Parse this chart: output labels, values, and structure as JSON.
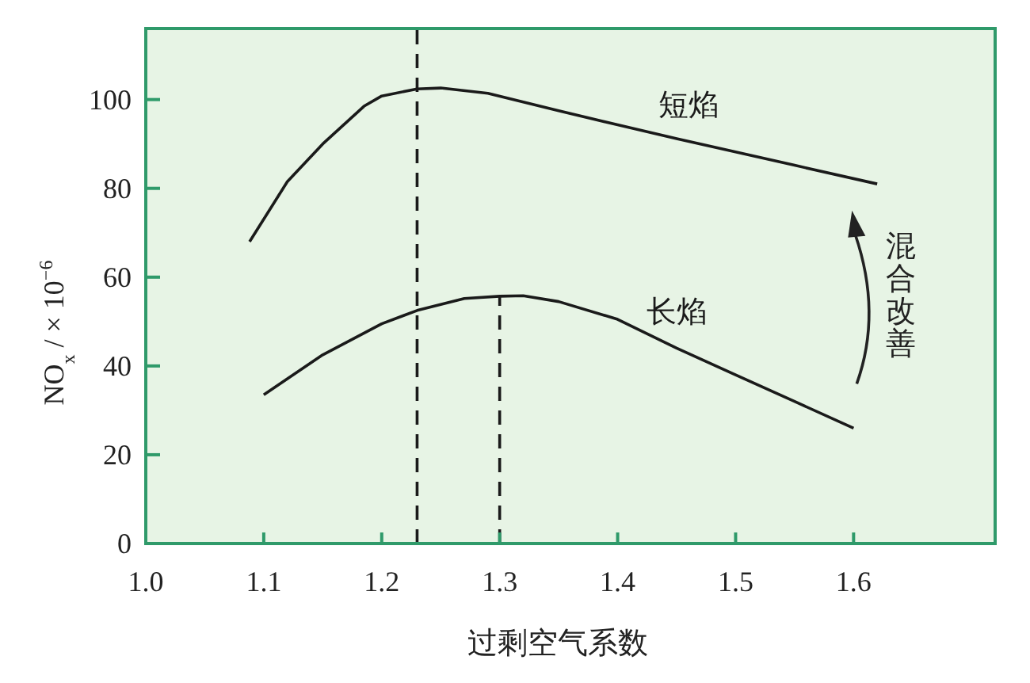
{
  "chart_data": {
    "type": "line",
    "xlabel": "过剩空气系数",
    "ylabel": "NO$_{x}$ / × 10$^{−6}$",
    "xlim": [
      1.0,
      1.72
    ],
    "xticks": [
      {
        "value": 1.0,
        "label": "1.0"
      },
      1.1,
      1.2,
      1.3,
      1.4,
      1.5,
      1.6
    ],
    "ylim": [
      0,
      116
    ],
    "yticks": [
      0,
      20,
      40,
      60,
      80,
      100
    ],
    "series": [
      {
        "name": "短焰",
        "color": "#1a1a1a",
        "x": [
          1.088,
          1.12,
          1.15,
          1.185,
          1.2,
          1.23,
          1.25,
          1.29,
          1.35,
          1.4,
          1.45,
          1.5,
          1.55,
          1.62
        ],
        "values": [
          68,
          81.5,
          90,
          98.5,
          100.8,
          102.4,
          102.6,
          101.4,
          97.5,
          94.3,
          91.2,
          88.2,
          85.2,
          81
        ]
      },
      {
        "name": "长焰",
        "color": "#1a1a1a",
        "x": [
          1.1,
          1.15,
          1.2,
          1.23,
          1.27,
          1.3,
          1.32,
          1.35,
          1.4,
          1.45,
          1.5,
          1.55,
          1.6
        ],
        "values": [
          33.5,
          42.5,
          49.5,
          52.5,
          55.2,
          55.7,
          55.8,
          54.5,
          50.5,
          44,
          38,
          32,
          26
        ]
      },
      {
        "type": "line",
        "line_style": "dashed",
        "color": "#1a1a1a",
        "x": [
          1.3,
          1.3
        ],
        "values": [
          0,
          55.7
        ]
      }
    ],
    "ref_lines": [
      {
        "axis": "x",
        "value": 1.23,
        "line_style": "dashed",
        "color": "#1a1a1a"
      }
    ],
    "annotations": [
      "混合改善"
    ]
  }
}
